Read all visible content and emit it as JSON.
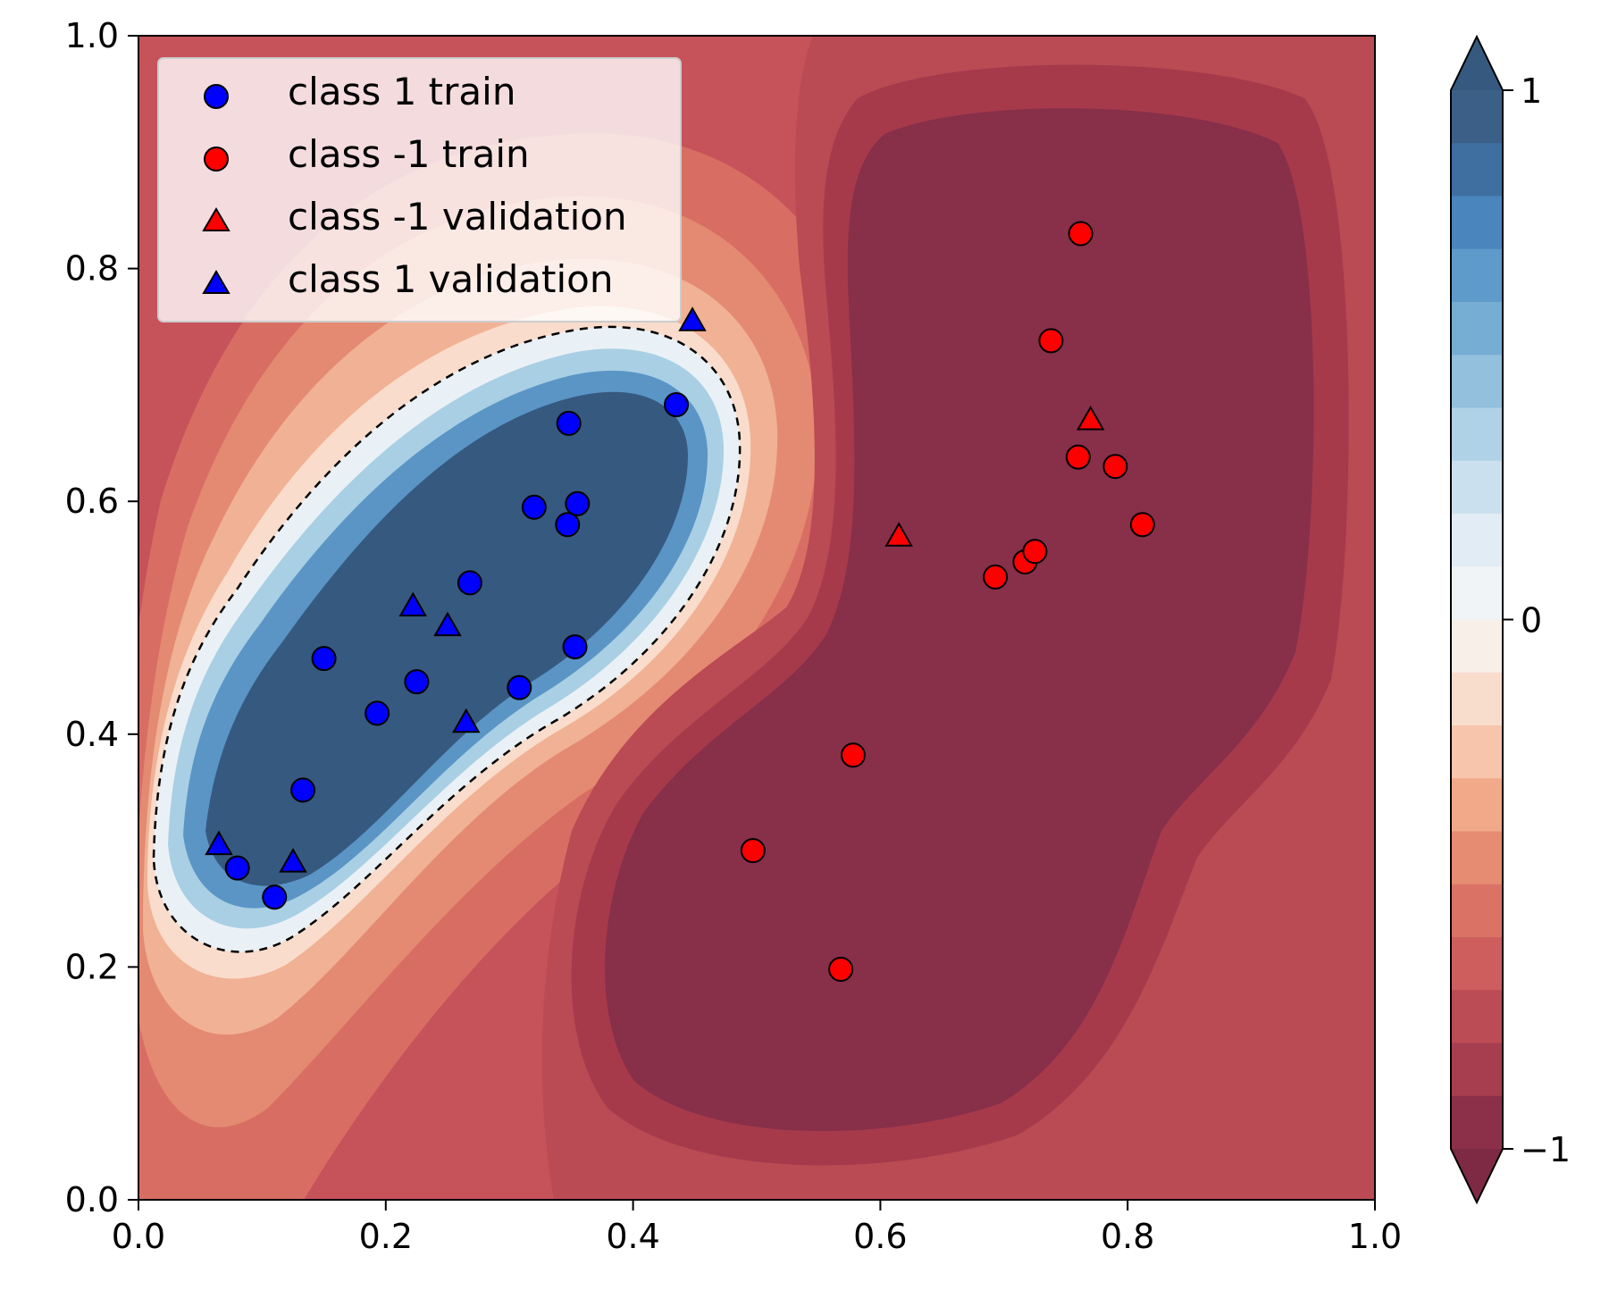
{
  "chart_data": {
    "type": "scatter",
    "title": "",
    "xlabel": "",
    "ylabel": "",
    "xlim": [
      0,
      1
    ],
    "ylim": [
      0,
      1
    ],
    "x_ticks": [
      "0.0",
      "0.2",
      "0.4",
      "0.6",
      "0.8",
      "1.0"
    ],
    "y_ticks": [
      "0.0",
      "0.2",
      "0.4",
      "0.6",
      "0.8",
      "1.0"
    ],
    "grid": false,
    "legend_position": "top-left",
    "background": "filled decision-function contours, colormap RdBu, levels -1 to 1",
    "decision_boundary": "dashed black contour at level 0",
    "colorbar": {
      "min": -1,
      "max": 1,
      "levels": 20,
      "extend": "both",
      "tick_values": [
        1,
        0,
        -1
      ],
      "tick_labels": [
        "1",
        "0",
        "−1"
      ]
    },
    "series": [
      {
        "name": "class 1 train",
        "marker": "circle",
        "color": "#0000ff",
        "points": [
          [
            0.08,
            0.285
          ],
          [
            0.11,
            0.26
          ],
          [
            0.133,
            0.352
          ],
          [
            0.15,
            0.465
          ],
          [
            0.193,
            0.418
          ],
          [
            0.225,
            0.445
          ],
          [
            0.268,
            0.53
          ],
          [
            0.308,
            0.44
          ],
          [
            0.32,
            0.595
          ],
          [
            0.347,
            0.58
          ],
          [
            0.348,
            0.667
          ],
          [
            0.355,
            0.598
          ],
          [
            0.353,
            0.475
          ],
          [
            0.435,
            0.683
          ]
        ]
      },
      {
        "name": "class -1 train",
        "marker": "circle",
        "color": "#ff0000",
        "points": [
          [
            0.497,
            0.3
          ],
          [
            0.568,
            0.198
          ],
          [
            0.578,
            0.382
          ],
          [
            0.693,
            0.535
          ],
          [
            0.717,
            0.548
          ],
          [
            0.725,
            0.557
          ],
          [
            0.738,
            0.738
          ],
          [
            0.76,
            0.638
          ],
          [
            0.762,
            0.83
          ],
          [
            0.79,
            0.63
          ],
          [
            0.812,
            0.58
          ]
        ]
      },
      {
        "name": "class -1 validation",
        "marker": "triangle",
        "color": "#ff0000",
        "points": [
          [
            0.615,
            0.57
          ],
          [
            0.77,
            0.67
          ]
        ]
      },
      {
        "name": "class 1 validation",
        "marker": "triangle",
        "color": "#0000ff",
        "points": [
          [
            0.065,
            0.305
          ],
          [
            0.125,
            0.29
          ],
          [
            0.222,
            0.51
          ],
          [
            0.25,
            0.493
          ],
          [
            0.265,
            0.41
          ],
          [
            0.448,
            0.755
          ]
        ]
      }
    ]
  }
}
